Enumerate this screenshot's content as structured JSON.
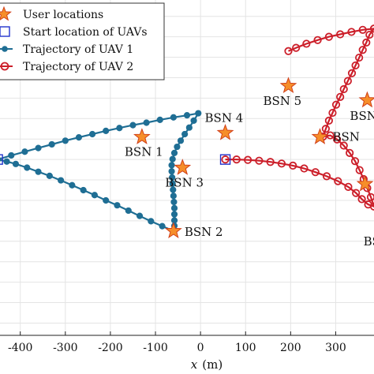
{
  "chart_data": {
    "type": "scatter",
    "xlabel_var": "x",
    "xlabel_unit": "(m)",
    "xlim": [
      -445,
      385
    ],
    "ylim": [
      -430,
      390
    ],
    "xticks": [
      -400,
      -300,
      -200,
      -100,
      0,
      100,
      200,
      300
    ],
    "xtick_labels": [
      "-400",
      "-300",
      "-200",
      "-100",
      "0",
      "100",
      "200",
      "300"
    ],
    "grid": true,
    "legend_position": "top-left",
    "legend": [
      {
        "key": "users",
        "label": "User locations"
      },
      {
        "key": "start",
        "label": "Start location of UAVs"
      },
      {
        "key": "uav1",
        "label": "Trajectory of UAV 1"
      },
      {
        "key": "uav2",
        "label": "Trajectory of UAV 2"
      }
    ],
    "colors": {
      "uav1": "#1f6e94",
      "uav2": "#cc1f2a",
      "star_fill": "#f68e2a",
      "star_edge": "#d1401a",
      "start": "#2233cc",
      "grid": "#e4e4e4"
    },
    "start_locations": [
      {
        "x": -450,
        "y": 0
      },
      {
        "x": 55,
        "y": 0
      }
    ],
    "users": [
      {
        "label": "BSN 1",
        "x": -130,
        "y": 55
      },
      {
        "label": "BSN 2",
        "x": -60,
        "y": -175
      },
      {
        "label": "BSN 3",
        "x": -40,
        "y": -20
      },
      {
        "label": "BSN 4",
        "x": 55,
        "y": 65
      },
      {
        "label": "BSN 5",
        "x": 195,
        "y": 180
      },
      {
        "label": "BSN",
        "x": 265,
        "y": 55
      },
      {
        "label": "BSN",
        "x": 370,
        "y": 145
      },
      {
        "label": "BSN",
        "x": 365,
        "y": -60
      }
    ],
    "series": [
      {
        "key": "uav1",
        "name": "Trajectory of UAV 1",
        "points": [
          [
            -450,
            0
          ],
          [
            -420,
            10
          ],
          [
            -390,
            19
          ],
          [
            -360,
            28
          ],
          [
            -330,
            37
          ],
          [
            -300,
            46
          ],
          [
            -270,
            54
          ],
          [
            -240,
            62
          ],
          [
            -210,
            70
          ],
          [
            -180,
            77
          ],
          [
            -150,
            84
          ],
          [
            -120,
            90
          ],
          [
            -90,
            97
          ],
          [
            -60,
            103
          ],
          [
            -30,
            108
          ],
          [
            -5,
            113
          ],
          [
            -15,
            95
          ],
          [
            -25,
            78
          ],
          [
            -35,
            62
          ],
          [
            -44,
            46
          ],
          [
            -52,
            31
          ],
          [
            -58,
            16
          ],
          [
            -62,
            1
          ],
          [
            -64,
            -14
          ],
          [
            -64,
            -29
          ],
          [
            -63,
            -44
          ],
          [
            -62,
            -59
          ],
          [
            -61,
            -74
          ],
          [
            -60,
            -89
          ],
          [
            -59,
            -104
          ],
          [
            -58,
            -119
          ],
          [
            -58,
            -134
          ],
          [
            -58,
            -149
          ],
          [
            -58,
            -162
          ],
          [
            -60,
            -175
          ],
          [
            -85,
            -163
          ],
          [
            -110,
            -151
          ],
          [
            -135,
            -138
          ],
          [
            -160,
            -125
          ],
          [
            -185,
            -112
          ],
          [
            -210,
            -100
          ],
          [
            -235,
            -87
          ],
          [
            -260,
            -75
          ],
          [
            -285,
            -63
          ],
          [
            -310,
            -51
          ],
          [
            -335,
            -40
          ],
          [
            -360,
            -30
          ],
          [
            -385,
            -20
          ],
          [
            -410,
            -11
          ],
          [
            -430,
            -5
          ],
          [
            -450,
            0
          ]
        ]
      },
      {
        "key": "uav2",
        "name": "Trajectory of UAV 2",
        "points": [
          [
            55,
            0
          ],
          [
            80,
            0
          ],
          [
            105,
            -1
          ],
          [
            130,
            -3
          ],
          [
            155,
            -6
          ],
          [
            180,
            -10
          ],
          [
            205,
            -15
          ],
          [
            230,
            -22
          ],
          [
            255,
            -31
          ],
          [
            280,
            -41
          ],
          [
            305,
            -53
          ],
          [
            328,
            -67
          ],
          [
            345,
            -82
          ],
          [
            358,
            -97
          ],
          [
            372,
            -110
          ],
          [
            385,
            -115
          ],
          [
            378,
            -92
          ],
          [
            370,
            -70
          ],
          [
            362,
            -48
          ],
          [
            353,
            -26
          ],
          [
            343,
            -4
          ],
          [
            331,
            16
          ],
          [
            318,
            34
          ],
          [
            303,
            49
          ],
          [
            288,
            59
          ],
          [
            272,
            56
          ],
          [
            278,
            75
          ],
          [
            285,
            95
          ],
          [
            293,
            114
          ],
          [
            301,
            134
          ],
          [
            310,
            153
          ],
          [
            318,
            172
          ],
          [
            327,
            192
          ],
          [
            336,
            211
          ],
          [
            344,
            230
          ],
          [
            352,
            249
          ],
          [
            360,
            268
          ],
          [
            368,
            286
          ],
          [
            375,
            305
          ],
          [
            385,
            320
          ],
          [
            360,
            317
          ],
          [
            335,
            312
          ],
          [
            310,
            306
          ],
          [
            285,
            300
          ],
          [
            260,
            292
          ],
          [
            235,
            283
          ],
          [
            212,
            273
          ],
          [
            195,
            265
          ]
        ]
      }
    ]
  }
}
